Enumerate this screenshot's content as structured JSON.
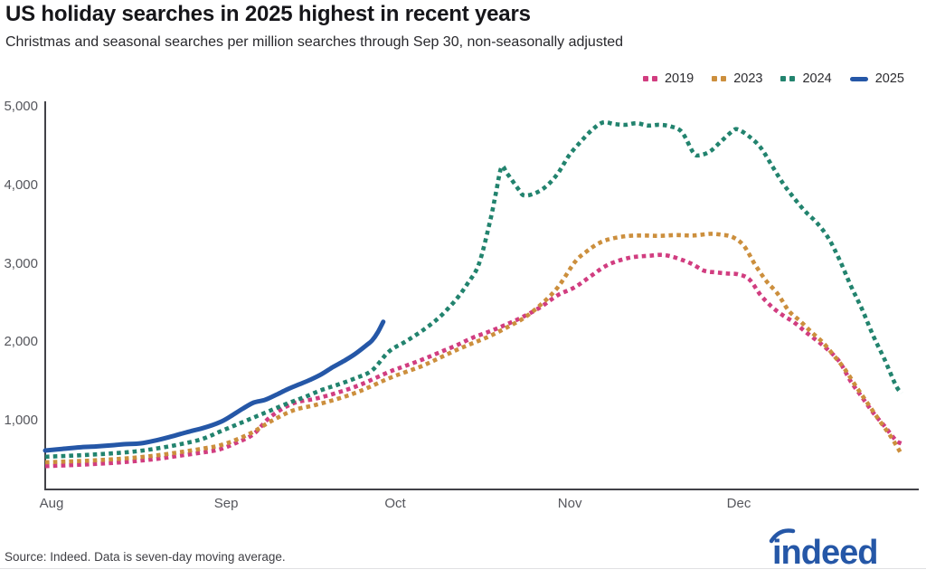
{
  "header": {
    "title": "US holiday searches in 2025 highest in recent years",
    "subtitle": "Christmas and seasonal searches per million searches through Sep 30, non-seasonally adjusted"
  },
  "footer": {
    "source": "Source: Indeed. Data is seven-day moving average.",
    "logo_text": "indeed"
  },
  "colors": {
    "axis": "#424248",
    "tick_label": "#55565c",
    "brand_blue": "#2557a7"
  },
  "chart_data": {
    "type": "line",
    "title": "US holiday searches in 2025 highest in recent years",
    "subtitle": "Christmas and seasonal searches per million searches through Sep 30, non-seasonally adjusted",
    "xlabel": "",
    "ylabel": "Christmas and seasonal searches per million searches",
    "x_unit": "days since Aug 1",
    "x_range_days": [
      0,
      152
    ],
    "ylim": [
      124,
      5000
    ],
    "grid": false,
    "legend_position": "top-right",
    "x_ticks": [
      {
        "label": "Aug",
        "day": 0
      },
      {
        "label": "Sep",
        "day": 31
      },
      {
        "label": "Oct",
        "day": 61
      },
      {
        "label": "Nov",
        "day": 92
      },
      {
        "label": "Dec",
        "day": 122
      }
    ],
    "y_ticks": [
      {
        "label": "1,000",
        "value": 1000
      },
      {
        "label": "2,000",
        "value": 2000
      },
      {
        "label": "3,000",
        "value": 3000
      },
      {
        "label": "4,000",
        "value": 4000
      },
      {
        "label": "5,000",
        "value": 5000
      }
    ],
    "series": [
      {
        "name": "2019",
        "color": "#d13d80",
        "style": "dotted",
        "points": [
          [
            0,
            420
          ],
          [
            4,
            432
          ],
          [
            8,
            445
          ],
          [
            12,
            462
          ],
          [
            16,
            485
          ],
          [
            20,
            515
          ],
          [
            24,
            555
          ],
          [
            28,
            595
          ],
          [
            31,
            635
          ],
          [
            34,
            720
          ],
          [
            37,
            830
          ],
          [
            40,
            1050
          ],
          [
            44,
            1220
          ],
          [
            48,
            1280
          ],
          [
            52,
            1360
          ],
          [
            56,
            1460
          ],
          [
            61,
            1620
          ],
          [
            64,
            1700
          ],
          [
            67,
            1780
          ],
          [
            70,
            1870
          ],
          [
            73,
            1960
          ],
          [
            76,
            2060
          ],
          [
            79,
            2140
          ],
          [
            82,
            2230
          ],
          [
            85,
            2330
          ],
          [
            88,
            2450
          ],
          [
            91,
            2600
          ],
          [
            94,
            2700
          ],
          [
            97,
            2850
          ],
          [
            99,
            2950
          ],
          [
            101,
            3020
          ],
          [
            104,
            3080
          ],
          [
            107,
            3100
          ],
          [
            110,
            3110
          ],
          [
            113,
            3050
          ],
          [
            115,
            2990
          ],
          [
            117,
            2910
          ],
          [
            119,
            2890
          ],
          [
            121,
            2875
          ],
          [
            123,
            2865
          ],
          [
            125,
            2800
          ],
          [
            127,
            2600
          ],
          [
            129,
            2450
          ],
          [
            131,
            2340
          ],
          [
            133,
            2250
          ],
          [
            135,
            2130
          ],
          [
            137,
            2020
          ],
          [
            139,
            1900
          ],
          [
            141,
            1750
          ],
          [
            143,
            1500
          ],
          [
            145,
            1300
          ],
          [
            147,
            1100
          ],
          [
            149,
            930
          ],
          [
            151,
            750
          ],
          [
            152,
            710
          ]
        ]
      },
      {
        "name": "2023",
        "color": "#cc8f3d",
        "style": "dotted",
        "points": [
          [
            0,
            470
          ],
          [
            4,
            480
          ],
          [
            8,
            492
          ],
          [
            12,
            508
          ],
          [
            16,
            530
          ],
          [
            20,
            560
          ],
          [
            24,
            600
          ],
          [
            28,
            645
          ],
          [
            31,
            685
          ],
          [
            34,
            760
          ],
          [
            37,
            860
          ],
          [
            40,
            990
          ],
          [
            44,
            1130
          ],
          [
            48,
            1200
          ],
          [
            52,
            1280
          ],
          [
            56,
            1380
          ],
          [
            61,
            1540
          ],
          [
            64,
            1620
          ],
          [
            67,
            1700
          ],
          [
            70,
            1800
          ],
          [
            73,
            1900
          ],
          [
            76,
            1990
          ],
          [
            79,
            2080
          ],
          [
            82,
            2190
          ],
          [
            85,
            2310
          ],
          [
            88,
            2480
          ],
          [
            91,
            2700
          ],
          [
            94,
            3020
          ],
          [
            96,
            3150
          ],
          [
            98,
            3250
          ],
          [
            100,
            3310
          ],
          [
            103,
            3350
          ],
          [
            106,
            3360
          ],
          [
            109,
            3355
          ],
          [
            112,
            3365
          ],
          [
            115,
            3360
          ],
          [
            118,
            3380
          ],
          [
            120,
            3370
          ],
          [
            122,
            3340
          ],
          [
            124,
            3230
          ],
          [
            126,
            2990
          ],
          [
            128,
            2780
          ],
          [
            130,
            2620
          ],
          [
            132,
            2400
          ],
          [
            134,
            2270
          ],
          [
            136,
            2130
          ],
          [
            138,
            2000
          ],
          [
            140,
            1830
          ],
          [
            142,
            1650
          ],
          [
            144,
            1430
          ],
          [
            146,
            1220
          ],
          [
            148,
            1010
          ],
          [
            150,
            810
          ],
          [
            152,
            575
          ]
        ]
      },
      {
        "name": "2024",
        "color": "#22836e",
        "style": "dotted",
        "points": [
          [
            0,
            540
          ],
          [
            4,
            552
          ],
          [
            8,
            566
          ],
          [
            12,
            584
          ],
          [
            16,
            608
          ],
          [
            20,
            648
          ],
          [
            24,
            700
          ],
          [
            28,
            770
          ],
          [
            31,
            860
          ],
          [
            34,
            950
          ],
          [
            37,
            1040
          ],
          [
            40,
            1130
          ],
          [
            43,
            1220
          ],
          [
            46,
            1300
          ],
          [
            49,
            1390
          ],
          [
            52,
            1460
          ],
          [
            55,
            1540
          ],
          [
            58,
            1640
          ],
          [
            61,
            1880
          ],
          [
            64,
            2010
          ],
          [
            67,
            2150
          ],
          [
            70,
            2320
          ],
          [
            73,
            2550
          ],
          [
            75,
            2750
          ],
          [
            77,
            3000
          ],
          [
            79,
            3550
          ],
          [
            80,
            3900
          ],
          [
            81,
            4230
          ],
          [
            82,
            4150
          ],
          [
            84,
            3950
          ],
          [
            85,
            3870
          ],
          [
            87,
            3900
          ],
          [
            89,
            3990
          ],
          [
            91,
            4150
          ],
          [
            93,
            4380
          ],
          [
            95,
            4550
          ],
          [
            97,
            4700
          ],
          [
            99,
            4800
          ],
          [
            101,
            4780
          ],
          [
            103,
            4770
          ],
          [
            105,
            4790
          ],
          [
            107,
            4760
          ],
          [
            109,
            4770
          ],
          [
            111,
            4750
          ],
          [
            113,
            4680
          ],
          [
            115,
            4420
          ],
          [
            116,
            4380
          ],
          [
            118,
            4430
          ],
          [
            120,
            4560
          ],
          [
            122,
            4690
          ],
          [
            123,
            4710
          ],
          [
            125,
            4620
          ],
          [
            127,
            4480
          ],
          [
            129,
            4250
          ],
          [
            131,
            4020
          ],
          [
            133,
            3830
          ],
          [
            135,
            3660
          ],
          [
            137,
            3520
          ],
          [
            139,
            3330
          ],
          [
            141,
            3050
          ],
          [
            143,
            2720
          ],
          [
            145,
            2420
          ],
          [
            147,
            2080
          ],
          [
            149,
            1780
          ],
          [
            151,
            1450
          ],
          [
            152,
            1350
          ]
        ]
      },
      {
        "name": "2025",
        "color": "#2557a7",
        "style": "solid",
        "points": [
          [
            0,
            620
          ],
          [
            3,
            640
          ],
          [
            6,
            660
          ],
          [
            9,
            672
          ],
          [
            12,
            688
          ],
          [
            14,
            700
          ],
          [
            17,
            712
          ],
          [
            20,
            755
          ],
          [
            22,
            790
          ],
          [
            24,
            830
          ],
          [
            26,
            870
          ],
          [
            28,
            905
          ],
          [
            31,
            980
          ],
          [
            33,
            1060
          ],
          [
            35,
            1150
          ],
          [
            37,
            1230
          ],
          [
            39,
            1265
          ],
          [
            41,
            1330
          ],
          [
            43,
            1400
          ],
          [
            45,
            1460
          ],
          [
            47,
            1520
          ],
          [
            49,
            1590
          ],
          [
            51,
            1680
          ],
          [
            53,
            1760
          ],
          [
            55,
            1850
          ],
          [
            57,
            1960
          ],
          [
            58,
            2020
          ],
          [
            59,
            2120
          ],
          [
            60,
            2260
          ]
        ]
      }
    ]
  }
}
